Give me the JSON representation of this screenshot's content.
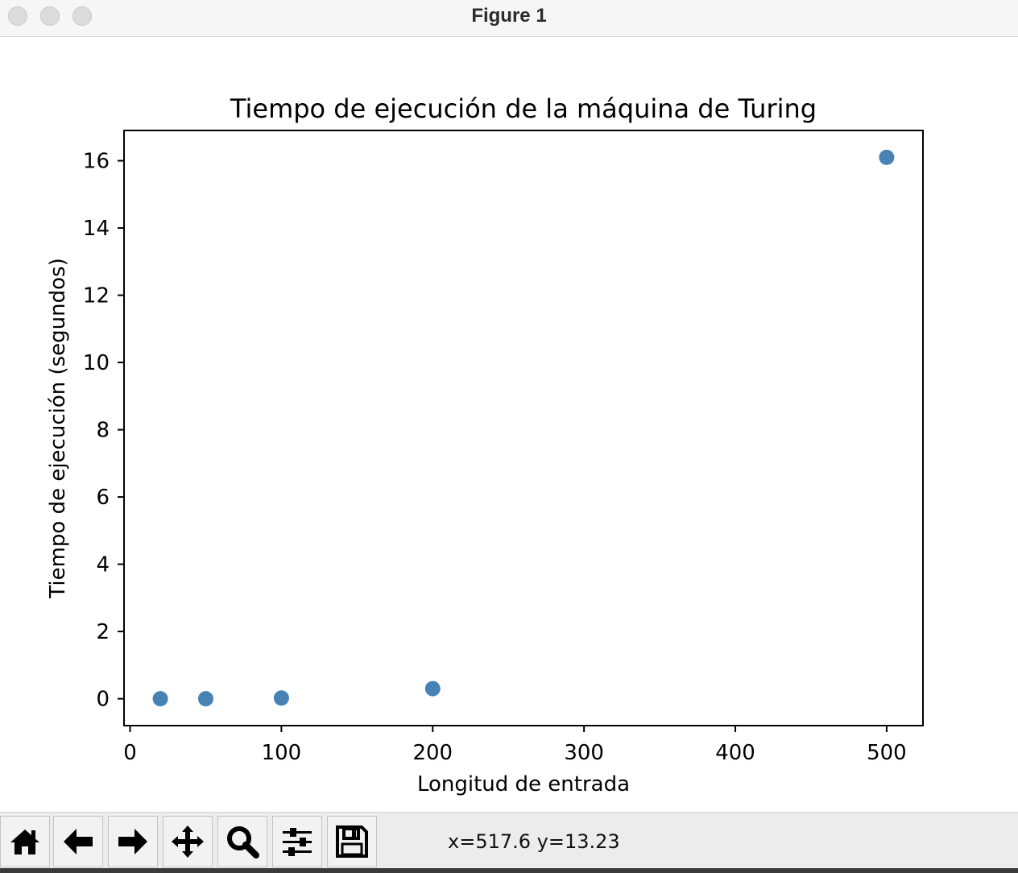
{
  "window": {
    "title": "Figure 1"
  },
  "chart_data": {
    "type": "scatter",
    "title": "Tiempo de ejecución de la máquina de Turing",
    "xlabel": "Longitud de entrada",
    "ylabel": "Tiempo de ejecución (segundos)",
    "x": [
      20,
      50,
      100,
      200,
      500
    ],
    "y": [
      0.0,
      0.0,
      0.02,
      0.3,
      16.1
    ],
    "xlim": [
      -4,
      524
    ],
    "ylim": [
      -0.8,
      16.9
    ],
    "xticks": [
      0,
      100,
      200,
      300,
      400,
      500
    ],
    "yticks": [
      0,
      2,
      4,
      6,
      8,
      10,
      12,
      14,
      16
    ],
    "marker_color": "#4682b4",
    "grid": false
  },
  "toolbar": {
    "buttons": [
      {
        "name": "home-button",
        "icon": "home-icon"
      },
      {
        "name": "back-button",
        "icon": "arrow-left-icon"
      },
      {
        "name": "forward-button",
        "icon": "arrow-right-icon"
      },
      {
        "name": "pan-button",
        "icon": "move-icon"
      },
      {
        "name": "zoom-button",
        "icon": "magnifier-icon"
      },
      {
        "name": "configure-subplots-button",
        "icon": "sliders-icon"
      },
      {
        "name": "save-button",
        "icon": "floppy-icon"
      }
    ],
    "coords": "x=517.6 y=13.23"
  }
}
